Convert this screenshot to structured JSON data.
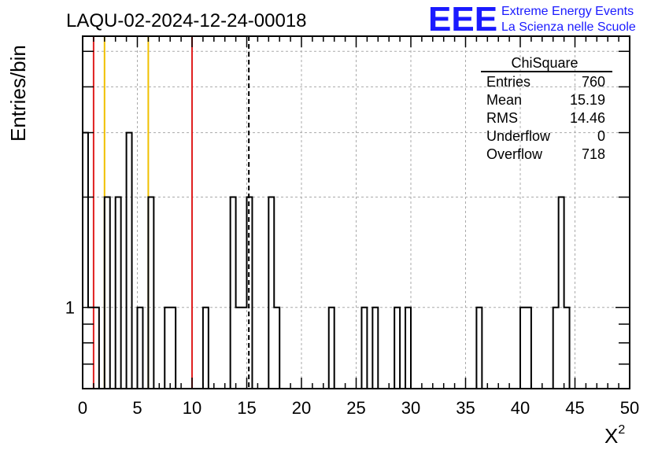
{
  "chart_data": {
    "type": "histogram",
    "title": "LAQU-02-2024-12-24-00018",
    "xlabel": "X",
    "xlabel_sup": "2",
    "ylabel": "Entries/bin",
    "xlim": [
      0,
      50
    ],
    "y_scale": "log",
    "ylim": [
      0.6,
      5.5
    ],
    "grid": true,
    "bin_width": 0.5,
    "x_ticks": [
      "0",
      "5",
      "10",
      "15",
      "20",
      "25",
      "30",
      "35",
      "40",
      "45",
      "50"
    ],
    "y_tick_labels": [
      {
        "value": 1,
        "label": "1"
      }
    ],
    "bins": [
      {
        "x": 0.0,
        "count": 3
      },
      {
        "x": 0.5,
        "count": 1
      },
      {
        "x": 1.0,
        "count": 1
      },
      {
        "x": 2.0,
        "count": 2
      },
      {
        "x": 3.0,
        "count": 2
      },
      {
        "x": 4.0,
        "count": 3
      },
      {
        "x": 5.0,
        "count": 1
      },
      {
        "x": 6.0,
        "count": 2
      },
      {
        "x": 7.5,
        "count": 1
      },
      {
        "x": 8.0,
        "count": 1
      },
      {
        "x": 11.0,
        "count": 1
      },
      {
        "x": 13.5,
        "count": 2
      },
      {
        "x": 14.0,
        "count": 1
      },
      {
        "x": 14.5,
        "count": 1
      },
      {
        "x": 15.0,
        "count": 2
      },
      {
        "x": 17.0,
        "count": 2
      },
      {
        "x": 17.5,
        "count": 1
      },
      {
        "x": 22.5,
        "count": 1
      },
      {
        "x": 25.5,
        "count": 1
      },
      {
        "x": 26.5,
        "count": 1
      },
      {
        "x": 28.5,
        "count": 1
      },
      {
        "x": 29.5,
        "count": 1
      },
      {
        "x": 36.0,
        "count": 1
      },
      {
        "x": 40.0,
        "count": 1
      },
      {
        "x": 40.5,
        "count": 1
      },
      {
        "x": 43.0,
        "count": 1
      },
      {
        "x": 43.5,
        "count": 2
      },
      {
        "x": 44.0,
        "count": 1
      }
    ],
    "reference_lines": [
      {
        "x": 1,
        "color": "#e02020",
        "style": "solid"
      },
      {
        "x": 2,
        "color": "#f0c000",
        "style": "solid"
      },
      {
        "x": 6,
        "color": "#f0c000",
        "style": "solid"
      },
      {
        "x": 10,
        "color": "#e02020",
        "style": "solid"
      },
      {
        "x": 15.19,
        "color": "#000000",
        "style": "dashed"
      }
    ],
    "stats_box": {
      "title": "ChiSquare",
      "rows": [
        {
          "label": "Entries",
          "value": "760"
        },
        {
          "label": "Mean",
          "value": "15.19"
        },
        {
          "label": "RMS",
          "value": "14.46"
        },
        {
          "label": "Underflow",
          "value": "0"
        },
        {
          "label": "Overflow",
          "value": "718"
        }
      ]
    }
  },
  "logo": {
    "mark": "EEE",
    "line1": "Extreme Energy Events",
    "line2": "La Scienza nelle Scuole",
    "color": "#1a1aff"
  }
}
